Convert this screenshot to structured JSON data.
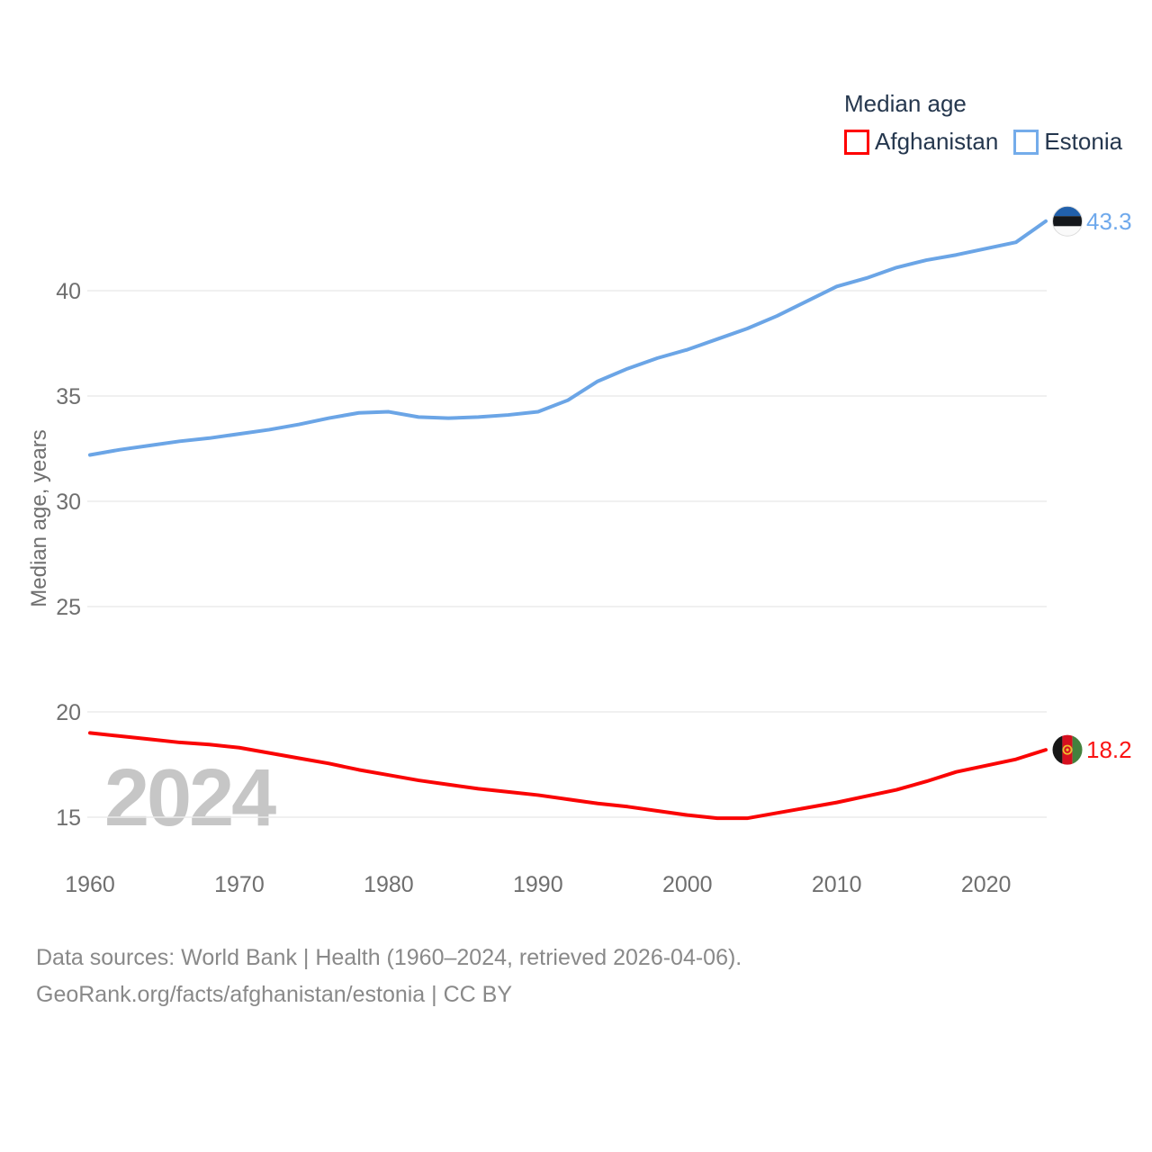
{
  "legend": {
    "title": "Median age",
    "items": [
      {
        "label": "Afghanistan",
        "color": "#ff0000"
      },
      {
        "label": "Estonia",
        "color": "#74acea"
      }
    ]
  },
  "watermark_year": "2024",
  "footer": {
    "line1": "Data sources: World Bank | Health (1960–2024, retrieved 2026-04-06).",
    "line2": "GeoRank.org/facts/afghanistan/estonia | CC BY"
  },
  "chart_data": {
    "type": "line",
    "title": "Median age",
    "xlabel": "",
    "ylabel": "Median age, years",
    "xlim": [
      1960,
      2024
    ],
    "ylim": [
      13.5,
      44.5
    ],
    "grid": "horizontal",
    "legend_position": "top-right",
    "x_ticks": [
      1960,
      1970,
      1980,
      1990,
      2000,
      2010,
      2020
    ],
    "y_ticks": [
      15,
      20,
      25,
      30,
      35,
      40
    ],
    "x": [
      1960,
      1962,
      1964,
      1966,
      1968,
      1970,
      1972,
      1974,
      1976,
      1978,
      1980,
      1982,
      1984,
      1986,
      1988,
      1990,
      1992,
      1994,
      1996,
      1998,
      2000,
      2002,
      2004,
      2006,
      2008,
      2010,
      2012,
      2014,
      2016,
      2018,
      2020,
      2022,
      2024
    ],
    "series": [
      {
        "name": "Afghanistan",
        "color": "#fa0505",
        "label_color": "#fa1414",
        "flag": "afghanistan",
        "end_value": 18.2,
        "end_label": "18.2",
        "values": [
          19.0,
          18.85,
          18.7,
          18.55,
          18.45,
          18.3,
          18.05,
          17.8,
          17.55,
          17.25,
          17.0,
          16.75,
          16.55,
          16.35,
          16.2,
          16.05,
          15.85,
          15.65,
          15.5,
          15.3,
          15.1,
          14.95,
          14.95,
          15.2,
          15.45,
          15.7,
          16.0,
          16.3,
          16.7,
          17.15,
          17.45,
          17.75,
          18.2
        ]
      },
      {
        "name": "Estonia",
        "color": "#6ba5e6",
        "label_color": "#6fa9ec",
        "flag": "estonia",
        "end_value": 43.3,
        "end_label": "43.3",
        "values": [
          32.2,
          32.45,
          32.65,
          32.85,
          33.0,
          33.2,
          33.4,
          33.65,
          33.95,
          34.2,
          34.25,
          34.0,
          33.95,
          34.0,
          34.1,
          34.25,
          34.8,
          35.7,
          36.3,
          36.8,
          37.2,
          37.7,
          38.2,
          38.8,
          39.5,
          40.2,
          40.6,
          41.1,
          41.45,
          41.7,
          42.0,
          42.3,
          43.3
        ]
      }
    ]
  }
}
